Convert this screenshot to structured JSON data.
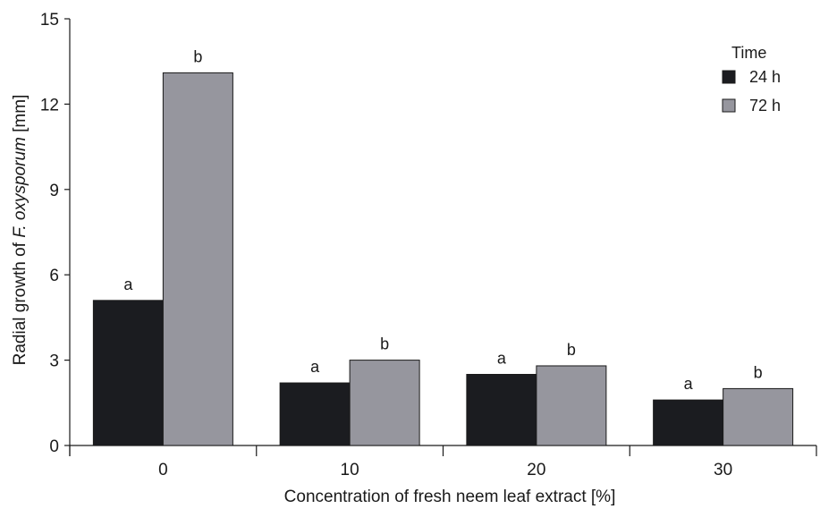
{
  "chart_data": {
    "type": "bar",
    "xlabel": "Concentration of fresh neem leaf extract [%]",
    "ylabel_prefix": "Radial growth of ",
    "ylabel_italic": "F. oxysporum",
    "ylabel_suffix": " [mm]",
    "ylim": [
      0,
      15
    ],
    "yticks": [
      "0",
      "3",
      "6",
      "9",
      "12",
      "15"
    ],
    "categories": [
      "0",
      "10",
      "20",
      "30"
    ],
    "series": [
      {
        "name": "24 h",
        "color": "#1b1c20",
        "values": [
          5.1,
          2.2,
          2.5,
          1.6
        ],
        "labels": [
          "a",
          "a",
          "a",
          "a"
        ]
      },
      {
        "name": "72 h",
        "color": "#96969e",
        "values": [
          13.1,
          3.0,
          2.8,
          2.0
        ],
        "labels": [
          "b",
          "b",
          "b",
          "b"
        ]
      }
    ],
    "legend": {
      "title": "Time",
      "position": "top-right"
    },
    "grid": false
  }
}
